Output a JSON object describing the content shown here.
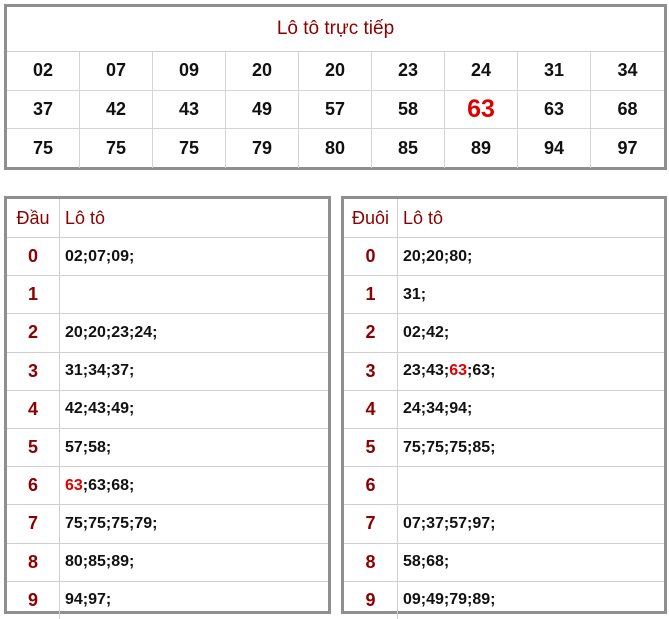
{
  "title": "Lô tô trực tiếp",
  "highlight": "63",
  "highlight_color": "#e00000",
  "label_color": "#8b0000",
  "top_numbers": [
    "02",
    "07",
    "09",
    "20",
    "20",
    "23",
    "24",
    "31",
    "34",
    "37",
    "42",
    "43",
    "49",
    "57",
    "58",
    "63",
    "63",
    "68",
    "75",
    "75",
    "75",
    "79",
    "80",
    "85",
    "89",
    "94",
    "97"
  ],
  "top_highlight_index": 15,
  "dau_table": {
    "header_key": "Đầu",
    "header_val": "Lô tô",
    "rows": [
      {
        "key": "0",
        "nums": [
          "02",
          "07",
          "09"
        ],
        "hl": []
      },
      {
        "key": "1",
        "nums": [],
        "hl": []
      },
      {
        "key": "2",
        "nums": [
          "20",
          "20",
          "23",
          "24"
        ],
        "hl": []
      },
      {
        "key": "3",
        "nums": [
          "31",
          "34",
          "37"
        ],
        "hl": []
      },
      {
        "key": "4",
        "nums": [
          "42",
          "43",
          "49"
        ],
        "hl": []
      },
      {
        "key": "5",
        "nums": [
          "57",
          "58"
        ],
        "hl": []
      },
      {
        "key": "6",
        "nums": [
          "63",
          "63",
          "68"
        ],
        "hl": [
          0
        ]
      },
      {
        "key": "7",
        "nums": [
          "75",
          "75",
          "75",
          "79"
        ],
        "hl": []
      },
      {
        "key": "8",
        "nums": [
          "80",
          "85",
          "89"
        ],
        "hl": []
      },
      {
        "key": "9",
        "nums": [
          "94",
          "97"
        ],
        "hl": []
      }
    ]
  },
  "duoi_table": {
    "header_key": "Đuôi",
    "header_val": "Lô tô",
    "rows": [
      {
        "key": "0",
        "nums": [
          "20",
          "20",
          "80"
        ],
        "hl": []
      },
      {
        "key": "1",
        "nums": [
          "31"
        ],
        "hl": []
      },
      {
        "key": "2",
        "nums": [
          "02",
          "42"
        ],
        "hl": []
      },
      {
        "key": "3",
        "nums": [
          "23",
          "43",
          "63",
          "63"
        ],
        "hl": [
          2
        ]
      },
      {
        "key": "4",
        "nums": [
          "24",
          "34",
          "94"
        ],
        "hl": []
      },
      {
        "key": "5",
        "nums": [
          "75",
          "75",
          "75",
          "85"
        ],
        "hl": []
      },
      {
        "key": "6",
        "nums": [],
        "hl": []
      },
      {
        "key": "7",
        "nums": [
          "07",
          "37",
          "57",
          "97"
        ],
        "hl": []
      },
      {
        "key": "8",
        "nums": [
          "58",
          "68"
        ],
        "hl": []
      },
      {
        "key": "9",
        "nums": [
          "09",
          "49",
          "79",
          "89"
        ],
        "hl": []
      }
    ]
  }
}
